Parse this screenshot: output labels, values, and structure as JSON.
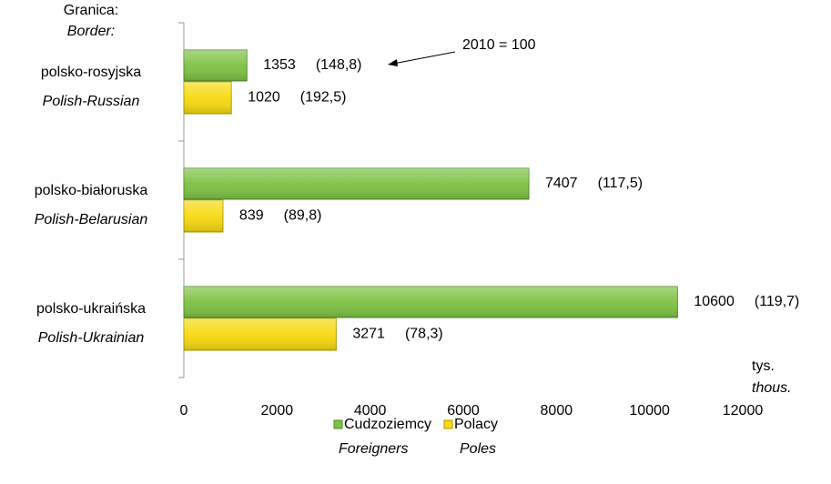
{
  "chart_data": {
    "type": "barh",
    "category_axis_label": "Granica:",
    "category_axis_label_en": "Border:",
    "value_axis_label": "tys.",
    "value_axis_label_en": "thous.",
    "annotation": "2010 = 100",
    "categories": [
      "polsko-rosyjska",
      "polsko-białoruska",
      "polsko-ukraińska"
    ],
    "categories_en": [
      "Polish-Russian",
      "Polish-Belarusian",
      "Polish-Ukrainian"
    ],
    "series": [
      {
        "name": "Cudzoziemcy",
        "name_en": "Foreigners",
        "color": "#7dc142",
        "values": [
          1353,
          7407,
          10600
        ],
        "index_labels": [
          "(148,8)",
          "(117,5)",
          "(119,7)"
        ]
      },
      {
        "name": "Polacy",
        "name_en": "Poles",
        "color": "#f7d90f",
        "values": [
          1020,
          839,
          3271
        ],
        "index_labels": [
          "(192,5)",
          "(89,8)",
          "(78,3)"
        ]
      }
    ],
    "xlim": [
      0,
      12000
    ],
    "xticks": [
      0,
      2000,
      4000,
      6000,
      8000,
      10000,
      12000
    ]
  }
}
